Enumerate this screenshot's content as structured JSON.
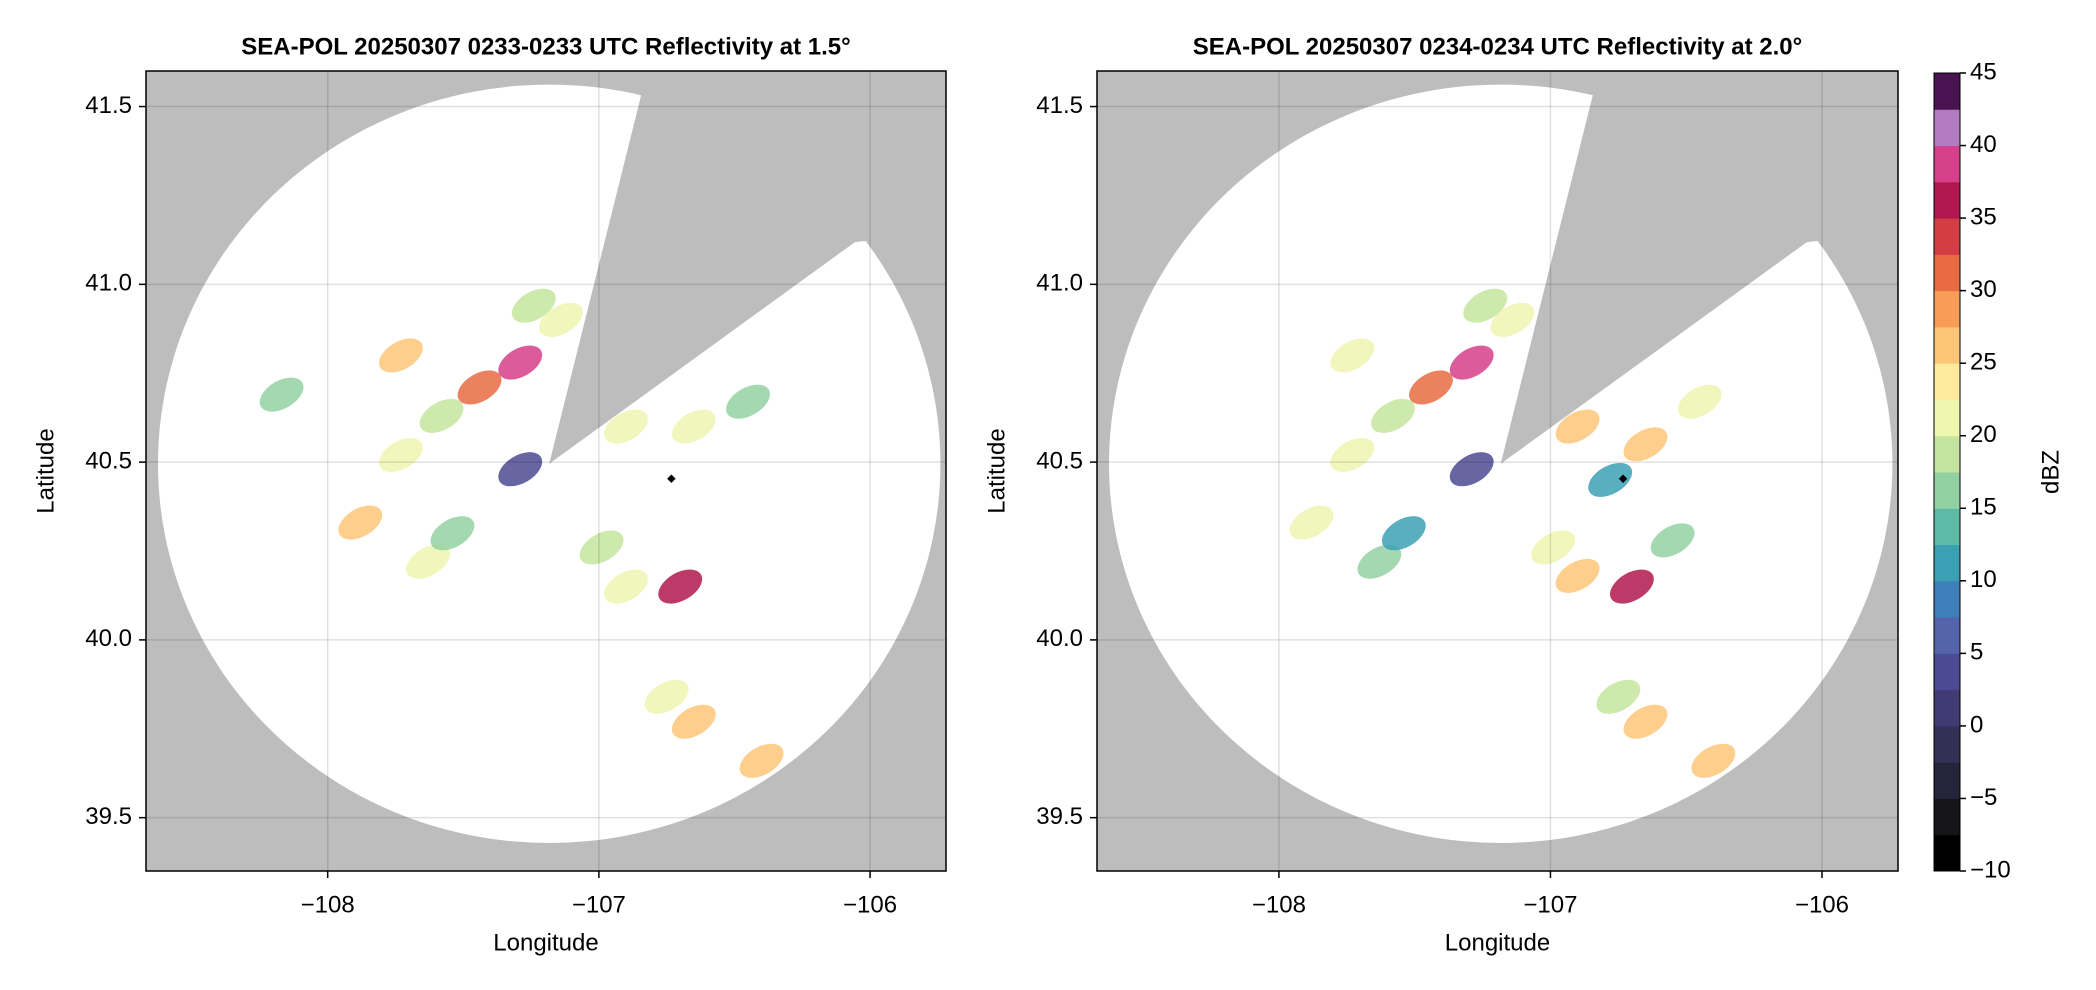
{
  "chart_data": [
    {
      "type": "radar",
      "title": "SEA-POL 20250307 0233-0233 UTC Reflectivity at 1.5°",
      "xlabel": "Longitude",
      "ylabel": "Latitude",
      "xlim": [
        -108.67,
        -105.72
      ],
      "ylim": [
        39.35,
        41.6
      ],
      "xticks": [
        {
          "value": -108,
          "label": "−108"
        },
        {
          "value": -107,
          "label": "−107"
        },
        {
          "value": -106,
          "label": "−106"
        }
      ],
      "yticks": [
        39.5,
        {
          "value": 40.0,
          "label": "40.0"
        },
        40.5,
        {
          "value": 41.0,
          "label": "41.0"
        },
        41.5
      ],
      "grid": true,
      "x": [
        -107.88,
        -107.73,
        -107.58,
        -107.44,
        -107.29,
        -107.14,
        -107.73,
        -107.24,
        -107.63,
        -107.54,
        -106.99,
        -106.7,
        -106.9,
        -106.75,
        -106.65,
        -106.4,
        -106.9,
        -106.65,
        -106.45,
        -107.29,
        -108.17
      ],
      "y": [
        40.33,
        40.52,
        40.63,
        40.71,
        40.78,
        40.9,
        40.8,
        40.94,
        40.22,
        40.3,
        40.26,
        40.15,
        40.15,
        39.84,
        39.77,
        39.66,
        40.6,
        40.6,
        40.67,
        40.48,
        40.69
      ],
      "values": [
        27,
        20,
        18,
        30,
        38,
        20,
        25,
        18,
        20,
        15,
        18,
        35,
        22,
        20,
        25,
        25,
        22,
        22,
        15,
        3,
        15
      ]
    },
    {
      "type": "radar",
      "title": "SEA-POL 20250307 0234-0234 UTC Reflectivity at 2.0°",
      "xlabel": "Longitude",
      "ylabel": "Latitude",
      "xlim": [
        -108.67,
        -105.72
      ],
      "ylim": [
        39.35,
        41.6
      ],
      "xticks": [
        {
          "value": -108,
          "label": "−108"
        },
        {
          "value": -107,
          "label": "−107"
        },
        {
          "value": -106,
          "label": "−106"
        }
      ],
      "yticks": [
        39.5,
        {
          "value": 40.0,
          "label": "40.0"
        },
        40.5,
        {
          "value": 41.0,
          "label": "41.0"
        },
        41.5
      ],
      "grid": true,
      "x": [
        -107.88,
        -107.73,
        -107.58,
        -107.44,
        -107.29,
        -107.14,
        -107.73,
        -107.24,
        -107.63,
        -107.54,
        -106.99,
        -106.7,
        -106.9,
        -106.75,
        -106.65,
        -106.4,
        -106.9,
        -106.65,
        -106.45,
        -107.29,
        -106.78,
        -106.55
      ],
      "y": [
        40.33,
        40.52,
        40.63,
        40.71,
        40.78,
        40.9,
        40.8,
        40.94,
        40.22,
        40.3,
        40.26,
        40.15,
        40.18,
        39.84,
        39.77,
        39.66,
        40.6,
        40.55,
        40.67,
        40.48,
        40.45,
        40.28
      ],
      "values": [
        22,
        20,
        18,
        32,
        38,
        20,
        22,
        18,
        15,
        12,
        20,
        35,
        25,
        18,
        25,
        25,
        25,
        25,
        20,
        3,
        12,
        15
      ]
    },
    {
      "type": "colorbar",
      "label": "dBZ",
      "clim": [
        -10,
        45
      ],
      "ticks": [
        {
          "value": -10,
          "label": "−10"
        },
        {
          "value": -5,
          "label": "−5"
        },
        0,
        5,
        10,
        15,
        20,
        25,
        30,
        35,
        40,
        45
      ],
      "colors": [
        "#000000",
        "#151518",
        "#25243a",
        "#332f55",
        "#413a74",
        "#4c4a92",
        "#5463aa",
        "#3e7fb9",
        "#3ca0b5",
        "#5dbaa6",
        "#94d1a2",
        "#c4e59e",
        "#eef6b0",
        "#fee99c",
        "#fdc578",
        "#f89c58",
        "#e96b43",
        "#d23e43",
        "#b0174c",
        "#d6408a",
        "#b27ac0",
        "#4a1250"
      ]
    }
  ]
}
